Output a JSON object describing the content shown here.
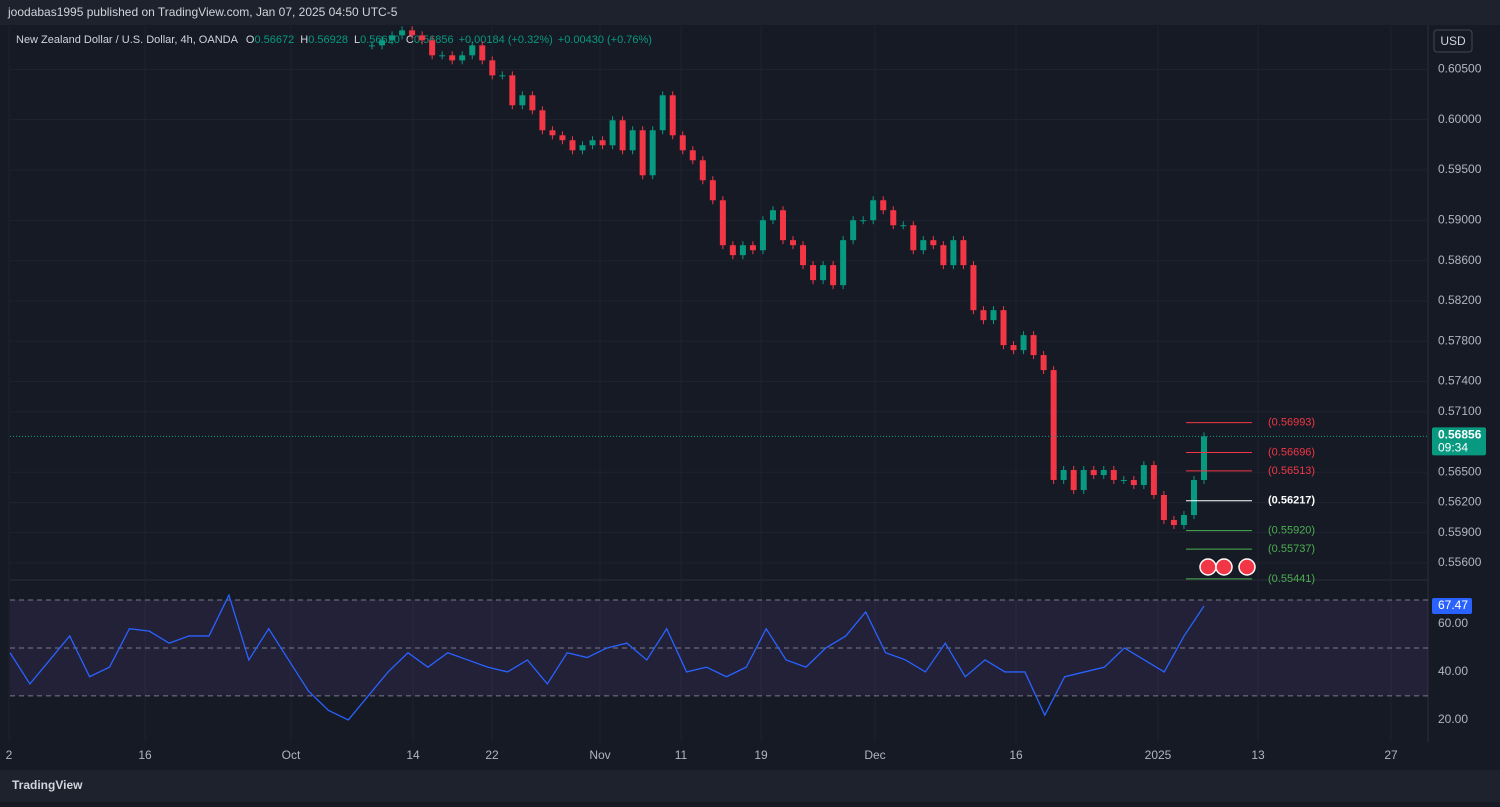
{
  "header": "joodabas1995 published on TradingView.com, Jan 07, 2025 04:50 UTC-5",
  "footer": "TradingView",
  "currency_button": "USD",
  "chart_data": [
    {
      "type": "candlestick",
      "symbol": "New Zealand Dollar / U.S. Dollar, 4h, OANDA",
      "legend": [
        {
          "key": "O",
          "value": "0.56672"
        },
        {
          "key": "H",
          "value": "0.56928"
        },
        {
          "key": "L",
          "value": "0.56620"
        },
        {
          "key": "C",
          "value": "0.56856"
        }
      ],
      "change": "+0.00184 (+0.32%)",
      "change2": "+0.00430 (+0.76%)",
      "up_color": "#089981",
      "down_color": "#f23645",
      "values": [
        0.60738,
        0.60788,
        0.60837,
        0.60887,
        0.60837,
        0.60788,
        0.60639,
        0.60639,
        0.60589,
        0.60639,
        0.60738,
        0.60589,
        0.6044,
        0.6044,
        0.60143,
        0.60242,
        0.60093,
        0.59895,
        0.59845,
        0.59796,
        0.59696,
        0.59746,
        0.59796,
        0.59746,
        0.59994,
        0.59696,
        0.59895,
        0.59448,
        0.59895,
        0.60242,
        0.59845,
        0.59696,
        0.59597,
        0.59399,
        0.592,
        0.58754,
        0.58655,
        0.58754,
        0.58704,
        0.59002,
        0.59101,
        0.58804,
        0.58754,
        0.58556,
        0.58407,
        0.58556,
        0.58357,
        0.58804,
        0.59002,
        0.59002,
        0.592,
        0.59101,
        0.58952,
        0.58952,
        0.58704,
        0.58804,
        0.58754,
        0.58556,
        0.58804,
        0.58556,
        0.58109,
        0.5801,
        0.58109,
        0.57762,
        0.57712,
        0.57861,
        0.57663,
        0.57514,
        0.56423,
        0.56522,
        0.56323,
        0.56522,
        0.56472,
        0.56522,
        0.56423,
        0.56423,
        0.56373,
        0.56571,
        0.56274,
        0.56026,
        0.55976,
        0.56075,
        0.56423,
        0.56856
      ],
      "ylim": [
        0.5545,
        0.6093
      ],
      "yticks": [
        {
          "value": 0.605,
          "label": "0.60500"
        },
        {
          "value": 0.6,
          "label": "0.60000"
        },
        {
          "value": 0.595,
          "label": "0.59500"
        },
        {
          "value": 0.59,
          "label": "0.59000"
        },
        {
          "value": 0.586,
          "label": "0.58600"
        },
        {
          "value": 0.582,
          "label": "0.58200"
        },
        {
          "value": 0.578,
          "label": "0.57800"
        },
        {
          "value": 0.574,
          "label": "0.57400"
        },
        {
          "value": 0.571,
          "label": "0.57100"
        },
        {
          "value": 0.565,
          "label": "0.56500"
        },
        {
          "value": 0.562,
          "label": "0.56200"
        },
        {
          "value": 0.559,
          "label": "0.55900"
        },
        {
          "value": 0.556,
          "label": "0.55600"
        }
      ],
      "levels": [
        {
          "value": 0.56993,
          "label": "(0.56993)",
          "color": "#f23645"
        },
        {
          "value": 0.56696,
          "label": "(0.56696)",
          "color": "#f23645"
        },
        {
          "value": 0.56513,
          "label": "(0.56513)",
          "color": "#f23645"
        },
        {
          "value": 0.56217,
          "label": "(0.56217)",
          "color": "#ffffff"
        },
        {
          "value": 0.5592,
          "label": "(0.55920)",
          "color": "#4caf50"
        },
        {
          "value": 0.55737,
          "label": "(0.55737)",
          "color": "#4caf50"
        },
        {
          "value": 0.55441,
          "label": "(0.55441)",
          "color": "#4caf50"
        }
      ],
      "last_price": 0.56856,
      "countdown": "09:34",
      "x_labels": [
        "2",
        "16",
        "Oct",
        "14",
        "22",
        "Nov",
        "11",
        "19",
        "Dec",
        "16",
        "2025",
        "13",
        "27"
      ],
      "grid": true
    },
    {
      "type": "line",
      "color": "#2962ff",
      "values": [
        48,
        35,
        45,
        55,
        38,
        42,
        58,
        57,
        52,
        55,
        55,
        72,
        45,
        58,
        45,
        32,
        24,
        20,
        30,
        40,
        48,
        42,
        48,
        45,
        42,
        40,
        45,
        35,
        48,
        46,
        50,
        52,
        45,
        58,
        40,
        42,
        38,
        42,
        58,
        45,
        42,
        50,
        55,
        65,
        48,
        45,
        40,
        52,
        38,
        45,
        40,
        40,
        22,
        38,
        40,
        42,
        50,
        45,
        40,
        55,
        67.47
      ],
      "ylim": [
        10.8,
        77.9
      ],
      "yticks": [
        {
          "value": 60,
          "label": "60.00"
        },
        {
          "value": 40,
          "label": "40.00"
        },
        {
          "value": 20,
          "label": "20.00"
        }
      ],
      "bands": [
        70,
        50,
        30
      ],
      "last_value": 67.47
    }
  ]
}
